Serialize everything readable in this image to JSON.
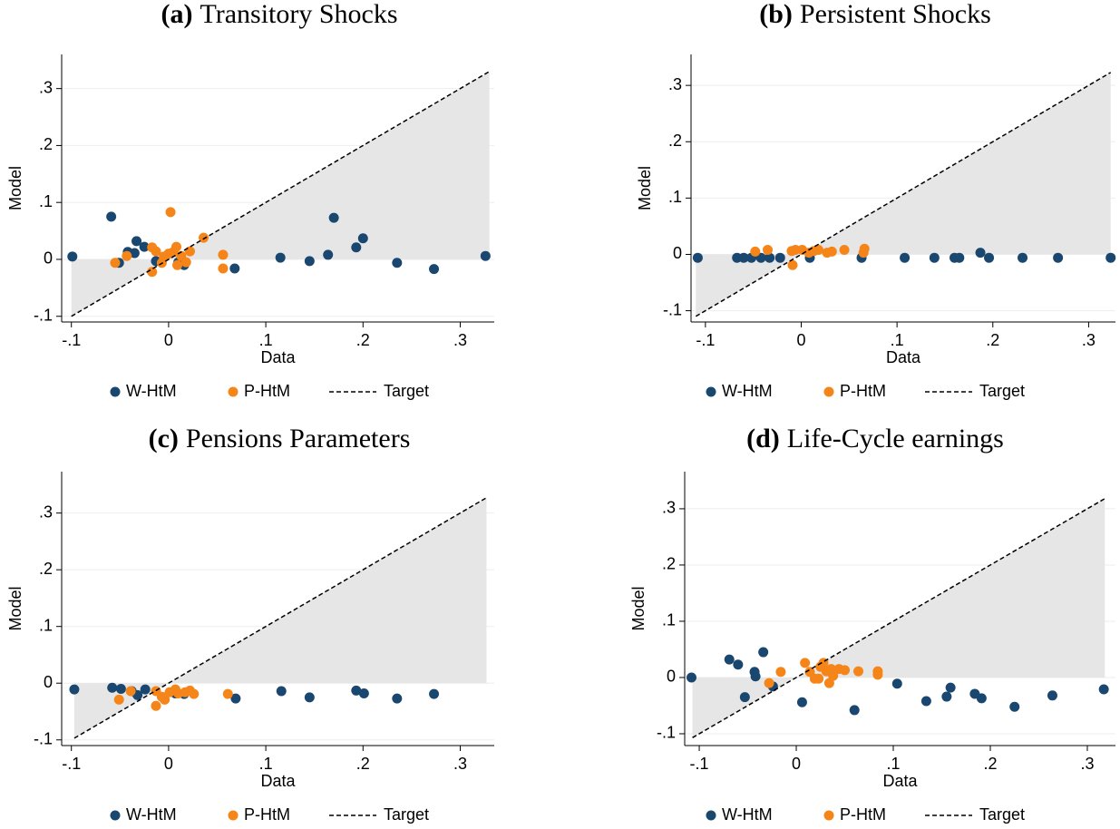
{
  "chart_data": [
    {
      "type": "scatter",
      "panel": "(a)",
      "title": "Transitory Shocks",
      "x_label": "Data",
      "y_label": "Model",
      "xlim": [
        -0.11,
        0.335
      ],
      "ylim": [
        -0.11,
        0.36
      ],
      "xticks": [
        {
          "value": -0.1,
          "label": "-.1"
        },
        0,
        {
          "value": 0.1,
          "label": ".1"
        },
        {
          "value": 0.2,
          "label": ".2"
        },
        {
          "value": 0.3,
          "label": ".3"
        }
      ],
      "yticks": [
        {
          "value": -0.1,
          "label": "-.1"
        },
        0,
        {
          "value": 0.1,
          "label": ".1"
        },
        {
          "value": 0.2,
          "label": ".2"
        },
        {
          "value": 0.3,
          "label": ".3"
        }
      ],
      "grid": true,
      "shade_color": "#e6e6e6",
      "series": [
        {
          "name": "W-HtM",
          "color": "#1a476f",
          "x": [
            -0.099,
            -0.059,
            -0.051,
            -0.042,
            -0.035,
            -0.033,
            -0.025,
            -0.013,
            0.01,
            0.016,
            0.068,
            0.115,
            0.145,
            0.164,
            0.17,
            0.193,
            0.2,
            0.235,
            0.273,
            0.326
          ],
          "values": [
            0.005,
            0.075,
            -0.006,
            0.013,
            0.011,
            0.032,
            0.022,
            -0.003,
            -0.005,
            -0.01,
            -0.016,
            0.003,
            -0.003,
            0.008,
            0.073,
            0.021,
            0.037,
            -0.006,
            -0.017,
            0.006
          ]
        },
        {
          "name": "P-HtM",
          "color": "#f58518",
          "x": [
            -0.055,
            -0.043,
            -0.017,
            -0.013,
            -0.017,
            -0.007,
            -0.005,
            0,
            0.002,
            0.005,
            0.008,
            0.009,
            0.013,
            0.018,
            0.022,
            0.036,
            0.056,
            0.056
          ],
          "values": [
            -0.006,
            0.006,
            0.021,
            0.014,
            -0.022,
            -0.006,
            0.005,
            0.01,
            0.083,
            0.013,
            0.022,
            -0.01,
            0.006,
            -0.005,
            0.014,
            0.038,
            0.008,
            -0.016
          ]
        },
        {
          "name": "Target",
          "color": "#000000",
          "dashed": true,
          "x": [
            -0.1,
            0.33
          ],
          "values": [
            -0.1,
            0.33
          ]
        }
      ]
    },
    {
      "type": "scatter",
      "panel": "(b)",
      "title": "Persistent Shocks",
      "x_label": "Data",
      "y_label": "Model",
      "xlim": [
        -0.115,
        0.328
      ],
      "ylim": [
        -0.12,
        0.355
      ],
      "xticks": [
        {
          "value": -0.1,
          "label": "-.1"
        },
        0,
        {
          "value": 0.1,
          "label": ".1"
        },
        {
          "value": 0.2,
          "label": ".2"
        },
        {
          "value": 0.3,
          "label": ".3"
        }
      ],
      "yticks": [
        {
          "value": -0.1,
          "label": "-.1"
        },
        0,
        {
          "value": 0.1,
          "label": ".1"
        },
        {
          "value": 0.2,
          "label": ".2"
        },
        {
          "value": 0.3,
          "label": ".3"
        }
      ],
      "grid": true,
      "shade_color": "#e6e6e6",
      "series": [
        {
          "name": "W-HtM",
          "color": "#1a476f",
          "x": [
            -0.108,
            -0.067,
            -0.06,
            -0.052,
            -0.042,
            -0.033,
            -0.022,
            0.009,
            0.063,
            0.108,
            0.139,
            0.16,
            0.165,
            0.187,
            0.196,
            0.231,
            0.268,
            0.323
          ],
          "values": [
            -0.006,
            -0.006,
            -0.006,
            -0.006,
            -0.006,
            -0.006,
            -0.006,
            -0.006,
            -0.006,
            -0.006,
            -0.006,
            -0.006,
            -0.006,
            0.003,
            -0.006,
            -0.006,
            -0.006,
            -0.006
          ]
        },
        {
          "name": "P-HtM",
          "color": "#f58518",
          "x": [
            -0.048,
            -0.035,
            -0.009,
            -0.01,
            -0.006,
            0.001,
            0.008,
            0.013,
            0.018,
            0.027,
            0.032,
            0.045,
            0.065,
            0.066
          ],
          "values": [
            0.005,
            0.008,
            -0.019,
            0.006,
            0.008,
            0.008,
            0.003,
            0.006,
            0.008,
            0.003,
            0.005,
            0.008,
            0.003,
            0.01
          ]
        },
        {
          "name": "Target",
          "color": "#000000",
          "dashed": true,
          "x": [
            -0.11,
            0.323
          ],
          "values": [
            -0.11,
            0.323
          ]
        }
      ]
    },
    {
      "type": "scatter",
      "panel": "(c)",
      "title": "Pensions Parameters",
      "x_label": "Data",
      "y_label": "Model",
      "xlim": [
        -0.11,
        0.335
      ],
      "ylim": [
        -0.11,
        0.373
      ],
      "xticks": [
        {
          "value": -0.1,
          "label": "-.1"
        },
        0,
        {
          "value": 0.1,
          "label": ".1"
        },
        {
          "value": 0.2,
          "label": ".2"
        },
        {
          "value": 0.3,
          "label": ".3"
        }
      ],
      "yticks": [
        {
          "value": -0.1,
          "label": "-.1"
        },
        0,
        {
          "value": 0.1,
          "label": ".1"
        },
        {
          "value": 0.2,
          "label": ".2"
        },
        {
          "value": 0.3,
          "label": ".3"
        }
      ],
      "grid": true,
      "shade_color": "#e6e6e6",
      "series": [
        {
          "name": "W-HtM",
          "color": "#1a476f",
          "x": [
            -0.097,
            -0.058,
            -0.049,
            -0.038,
            -0.032,
            -0.024,
            0.007,
            0.016,
            0.069,
            0.116,
            0.145,
            0.193,
            0.201,
            0.235,
            0.273
          ],
          "values": [
            -0.011,
            -0.008,
            -0.01,
            -0.014,
            -0.021,
            -0.011,
            -0.018,
            -0.019,
            -0.027,
            -0.014,
            -0.025,
            -0.013,
            -0.018,
            -0.027,
            -0.019
          ]
        },
        {
          "name": "P-HtM",
          "color": "#f58518",
          "x": [
            -0.051,
            -0.039,
            -0.013,
            -0.013,
            -0.007,
            -0.004,
            0.001,
            0.007,
            0.01,
            0.017,
            0.022,
            0.026,
            0.061
          ],
          "values": [
            -0.029,
            -0.014,
            -0.04,
            -0.014,
            -0.024,
            -0.029,
            -0.016,
            -0.011,
            -0.018,
            -0.016,
            -0.013,
            -0.019,
            -0.019
          ]
        },
        {
          "name": "Target",
          "color": "#000000",
          "dashed": true,
          "x": [
            -0.097,
            0.327
          ],
          "values": [
            -0.097,
            0.327
          ]
        }
      ]
    },
    {
      "type": "scatter",
      "panel": "(d)",
      "title": "Life-Cycle earnings",
      "x_label": "Data",
      "y_label": "Model",
      "xlim": [
        -0.115,
        0.329
      ],
      "ylim": [
        -0.121,
        0.366
      ],
      "xticks": [
        {
          "value": -0.1,
          "label": "-.1"
        },
        0,
        {
          "value": 0.1,
          "label": ".1"
        },
        {
          "value": 0.2,
          "label": ".2"
        },
        {
          "value": 0.3,
          "label": ".3"
        }
      ],
      "yticks": [
        {
          "value": -0.1,
          "label": "-.1"
        },
        0,
        {
          "value": 0.1,
          "label": ".1"
        },
        {
          "value": 0.2,
          "label": ".2"
        },
        {
          "value": 0.3,
          "label": ".3"
        }
      ],
      "grid": true,
      "shade_color": "#e6e6e6",
      "series": [
        {
          "name": "W-HtM",
          "color": "#1a476f",
          "x": [
            -0.108,
            -0.069,
            -0.06,
            -0.053,
            -0.043,
            -0.042,
            -0.034,
            -0.024,
            0.006,
            0.06,
            0.104,
            0.134,
            0.155,
            0.159,
            0.184,
            0.191,
            0.225,
            0.264,
            0.317
          ],
          "values": [
            0,
            0.032,
            0.023,
            -0.035,
            0.01,
            0.002,
            0.045,
            -0.016,
            -0.044,
            -0.058,
            -0.011,
            -0.042,
            -0.034,
            -0.018,
            -0.029,
            -0.037,
            -0.052,
            -0.032,
            -0.021
          ]
        },
        {
          "name": "P-HtM",
          "color": "#f58518",
          "x": [
            -0.028,
            -0.016,
            0.009,
            0.014,
            0.019,
            0.023,
            0.025,
            0.028,
            0.031,
            0.034,
            0.036,
            0.038,
            0.044,
            0.05,
            0.064,
            0.084,
            0.084
          ],
          "values": [
            -0.01,
            0.01,
            0.026,
            0.01,
            -0.002,
            -0.002,
            0.019,
            0.026,
            0.011,
            -0.01,
            0.015,
            0.003,
            0.015,
            0.013,
            0.011,
            0.011,
            0.005
          ]
        },
        {
          "name": "Target",
          "color": "#000000",
          "dashed": true,
          "x": [
            -0.107,
            0.318
          ],
          "values": [
            -0.107,
            0.318
          ]
        }
      ]
    }
  ]
}
